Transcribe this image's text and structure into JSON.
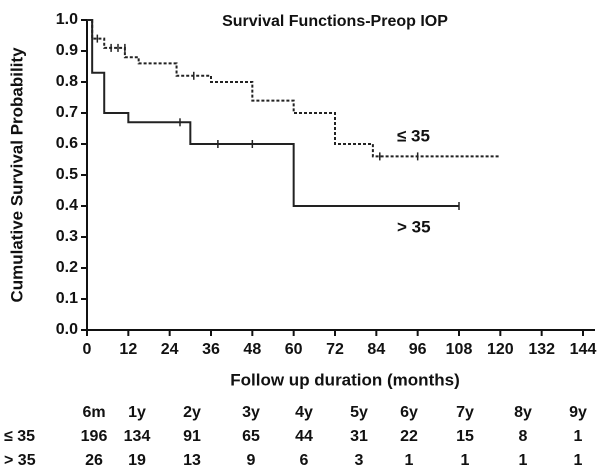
{
  "chart_data": {
    "type": "step",
    "title": "Survival Functions-Preop IOP",
    "x_label": "Follow up duration (months)",
    "y_label": "Cumulative Survival Probability",
    "xlim": [
      0,
      144
    ],
    "xticks": [
      0,
      12,
      24,
      36,
      48,
      60,
      72,
      84,
      96,
      108,
      120,
      132,
      144
    ],
    "ylim": [
      0,
      1
    ],
    "yticks": [
      {
        "value": 0,
        "label": "0.0"
      },
      0.1,
      0.2,
      0.3,
      0.4,
      0.5,
      0.6,
      0.7,
      0.8,
      0.9,
      {
        "value": 1,
        "label": "1.0"
      }
    ],
    "series": [
      {
        "name": "≤ 35",
        "color": "#222",
        "dash": "3,2",
        "x": [
          0,
          1.5,
          5,
          11,
          15,
          26,
          36,
          48,
          60,
          72,
          83,
          120
        ],
        "values": [
          1.0,
          0.94,
          0.91,
          0.88,
          0.86,
          0.82,
          0.8,
          0.74,
          0.7,
          0.6,
          0.56,
          0.56
        ],
        "censor_x": [
          3,
          7,
          9,
          11,
          31,
          85,
          96
        ],
        "censor_values": [
          0.94,
          0.91,
          0.91,
          0.91,
          0.82,
          0.56,
          0.56
        ]
      },
      {
        "name": "> 35",
        "color": "#222",
        "dash": "none",
        "x": [
          0,
          1.5,
          5,
          12,
          30,
          60,
          108
        ],
        "values": [
          1.0,
          0.83,
          0.7,
          0.67,
          0.6,
          0.4,
          0.4
        ],
        "censor_x": [
          27,
          38,
          48,
          108
        ],
        "censor_values": [
          0.67,
          0.6,
          0.6,
          0.4
        ]
      }
    ],
    "risk_table": {
      "columns": [
        "6m",
        "1y",
        "2y",
        "3y",
        "4y",
        "5y",
        "6y",
        "7y",
        "8y",
        "9y"
      ],
      "rows": [
        {
          "label": "≤ 35",
          "values": [
            196,
            134,
            91,
            65,
            44,
            31,
            22,
            15,
            8,
            1
          ]
        },
        {
          "label": "> 35",
          "values": [
            26,
            19,
            13,
            9,
            6,
            3,
            1,
            1,
            1,
            1
          ]
        }
      ]
    }
  }
}
